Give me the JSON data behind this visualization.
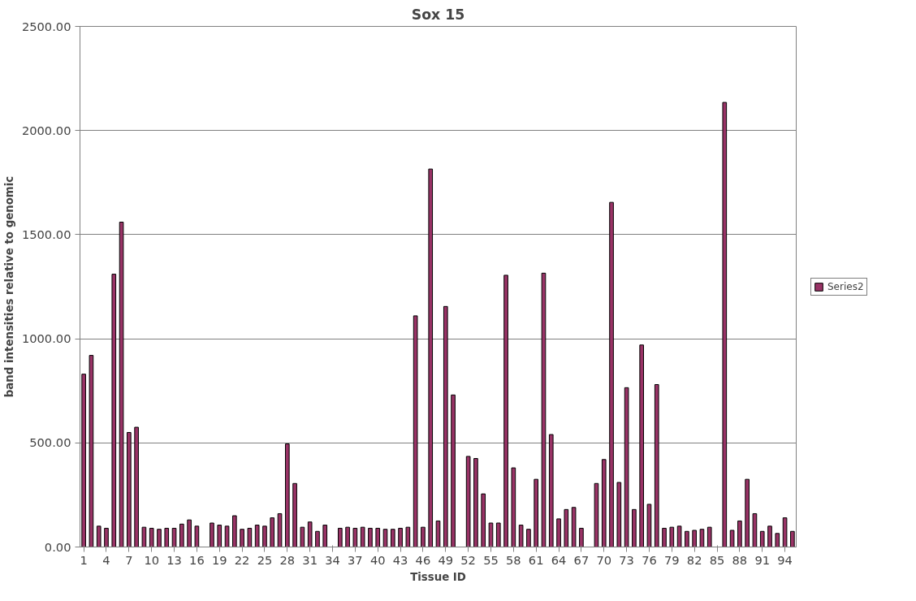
{
  "chart_data": {
    "type": "bar",
    "title": "Sox 15",
    "xlabel": "Tissue ID",
    "ylabel": "band intensities relative to genomic",
    "categories": [
      "1",
      null,
      null,
      "4",
      null,
      null,
      "7",
      null,
      null,
      "10",
      null,
      null,
      "13",
      null,
      null,
      "16",
      null,
      null,
      "19",
      null,
      null,
      "22",
      null,
      null,
      "25",
      null,
      null,
      "28",
      null,
      null,
      "31",
      null,
      null,
      "34",
      null,
      null,
      "37",
      null,
      null,
      "40",
      null,
      null,
      "43",
      null,
      null,
      "46",
      null,
      null,
      "49",
      null,
      null,
      "52",
      null,
      null,
      "55",
      null,
      null,
      "58",
      null,
      null,
      "61",
      null,
      null,
      "64",
      null,
      null,
      "67",
      null,
      null,
      "70",
      null,
      null,
      "73",
      null,
      null,
      "76",
      null,
      null,
      "79",
      null,
      null,
      "82",
      null,
      null,
      "85",
      null,
      null,
      "88",
      null,
      null,
      "91",
      null,
      null,
      "94",
      null
    ],
    "series": [
      {
        "name": "Series2",
        "color": "#993366",
        "values": [
          830,
          920,
          100,
          90,
          1310,
          1560,
          550,
          575,
          95,
          90,
          85,
          90,
          90,
          110,
          130,
          100,
          null,
          115,
          105,
          100,
          150,
          85,
          90,
          105,
          100,
          140,
          160,
          495,
          305,
          95,
          120,
          75,
          105,
          null,
          90,
          95,
          90,
          95,
          90,
          90,
          85,
          85,
          90,
          95,
          1110,
          95,
          1815,
          125,
          1155,
          730,
          null,
          435,
          425,
          255,
          115,
          115,
          1305,
          380,
          105,
          85,
          325,
          1315,
          540,
          135,
          180,
          190,
          90,
          null,
          305,
          420,
          1655,
          310,
          765,
          180,
          970,
          205,
          780,
          90,
          95,
          100,
          75,
          80,
          85,
          95,
          null,
          2135,
          80,
          125,
          325,
          160,
          75,
          100,
          65,
          140,
          75
        ]
      }
    ],
    "ylim": [
      0,
      2500
    ],
    "yticks": [
      {
        "value": 0,
        "label": "0.00"
      },
      {
        "value": 500,
        "label": "500.00"
      },
      {
        "value": 1000,
        "label": "1000.00"
      },
      {
        "value": 1500,
        "label": "1500.00"
      },
      {
        "value": 2000,
        "label": "2000.00"
      },
      {
        "value": 2500,
        "label": "2500.00"
      }
    ],
    "grid": "y",
    "legend": "right"
  }
}
